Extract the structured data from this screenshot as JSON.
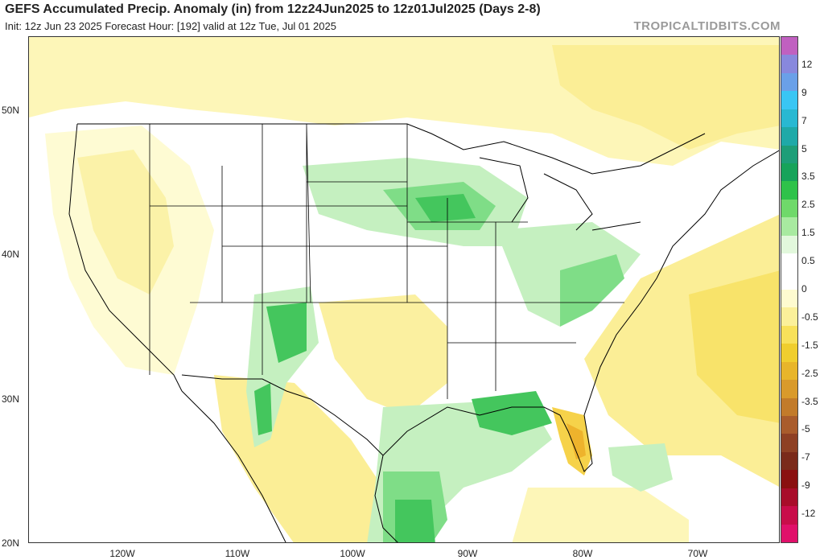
{
  "title": "GEFS Accumulated Precip. Anomaly (in) from 12z24Jun2025 to 12z01Jul2025 (Days 2-8)",
  "subtitle": "Init: 12z Jun 23 2025   Forecast Hour: [192]   valid at 12z Tue, Jul 01 2025",
  "credit": "TROPICALTIDBITS.COM",
  "map": {
    "lat_labels": [
      "50N",
      "40N",
      "30N",
      "20N"
    ],
    "lon_labels": [
      "120W",
      "110W",
      "100W",
      "90W",
      "80W",
      "70W"
    ],
    "colors": {
      "ocean_land_base": "#ffffff",
      "state_lines": "#000000",
      "dry_light": "#fefbd3",
      "dry_mid": "#fbee96",
      "dry_strong": "#f6d24a",
      "dry_deep": "#eeb32c",
      "wet_light": "#c5f0c0",
      "wet_mid": "#7fdd87",
      "wet_strong": "#44c65d",
      "wet_deep": "#1faa48"
    }
  },
  "colorbar": {
    "labels": [
      "12",
      "9",
      "7",
      "5",
      "3.5",
      "2.5",
      "1.5",
      "0.5",
      "0",
      "-0.5",
      "-1.5",
      "-2.5",
      "-3.5",
      "-5",
      "-7",
      "-9",
      "-12"
    ],
    "colors": [
      "#c060c0",
      "#8888dd",
      "#6aa0e8",
      "#39c6f4",
      "#28b8d2",
      "#1fa9a8",
      "#1e9e78",
      "#17a35a",
      "#2fc24a",
      "#6fd96a",
      "#a8eaa0",
      "#e2f8dc",
      "#ffffff",
      "#ffffff",
      "#fefbd0",
      "#fbf09a",
      "#f8e15a",
      "#f0ce2e",
      "#e8b52a",
      "#d99a2b",
      "#c27b2a",
      "#a95c2c",
      "#8e4024",
      "#7a2a1a",
      "#8a1010",
      "#a80d2a",
      "#c80d4a",
      "#e0106a"
    ]
  }
}
